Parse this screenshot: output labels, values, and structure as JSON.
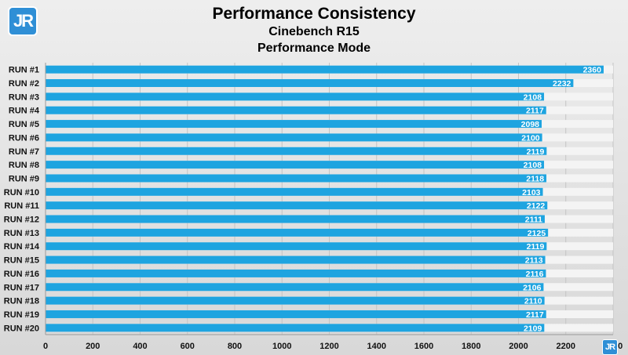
{
  "logo_text": "JR",
  "chart_data": {
    "type": "bar",
    "orientation": "horizontal",
    "title": "Performance Consistency",
    "subtitle": "Cinebench R15",
    "subtitle2": "Performance Mode",
    "categories": [
      "RUN #1",
      "RUN #2",
      "RUN #3",
      "RUN #4",
      "RUN #5",
      "RUN #6",
      "RUN #7",
      "RUN #8",
      "RUN #9",
      "RUN #10",
      "RUN #11",
      "RUN #12",
      "RUN #13",
      "RUN #14",
      "RUN #15",
      "RUN #16",
      "RUN #17",
      "RUN #18",
      "RUN #19",
      "RUN #20"
    ],
    "values": [
      2360,
      2232,
      2108,
      2117,
      2098,
      2100,
      2119,
      2108,
      2118,
      2103,
      2122,
      2111,
      2125,
      2119,
      2113,
      2116,
      2106,
      2110,
      2117,
      2109
    ],
    "xlim": [
      0,
      2400
    ],
    "xticks": [
      0,
      200,
      400,
      600,
      800,
      1000,
      1200,
      1400,
      1600,
      1800,
      2000,
      2200,
      2400
    ],
    "bar_color": "#1ea4e0",
    "grid": true,
    "legend": "none"
  }
}
